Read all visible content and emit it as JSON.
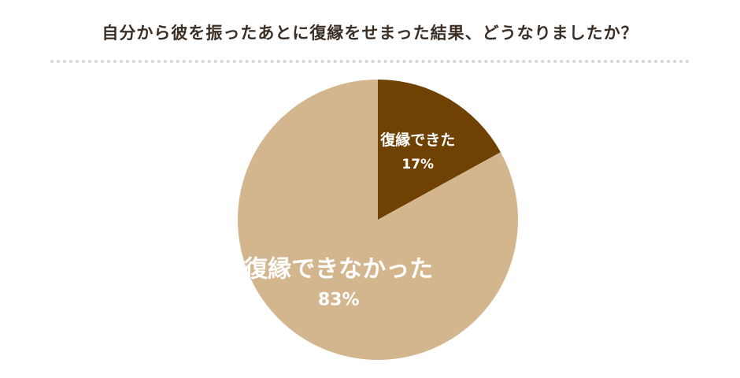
{
  "title": "自分から彼を振ったあとに復縁をせまった結果、どうなりましたか？",
  "chart_data": {
    "type": "pie",
    "title": "自分から彼を振ったあとに復縁をせまった結果、どうなりましたか？",
    "start_angle": "12 o'clock, clockwise",
    "slices": [
      {
        "label": "復縁できた",
        "value": 17,
        "value_label": "17%",
        "color": "#6f4103"
      },
      {
        "label": "復縁できなかった",
        "value": 83,
        "value_label": "83%",
        "color": "#d3b68d"
      }
    ]
  }
}
